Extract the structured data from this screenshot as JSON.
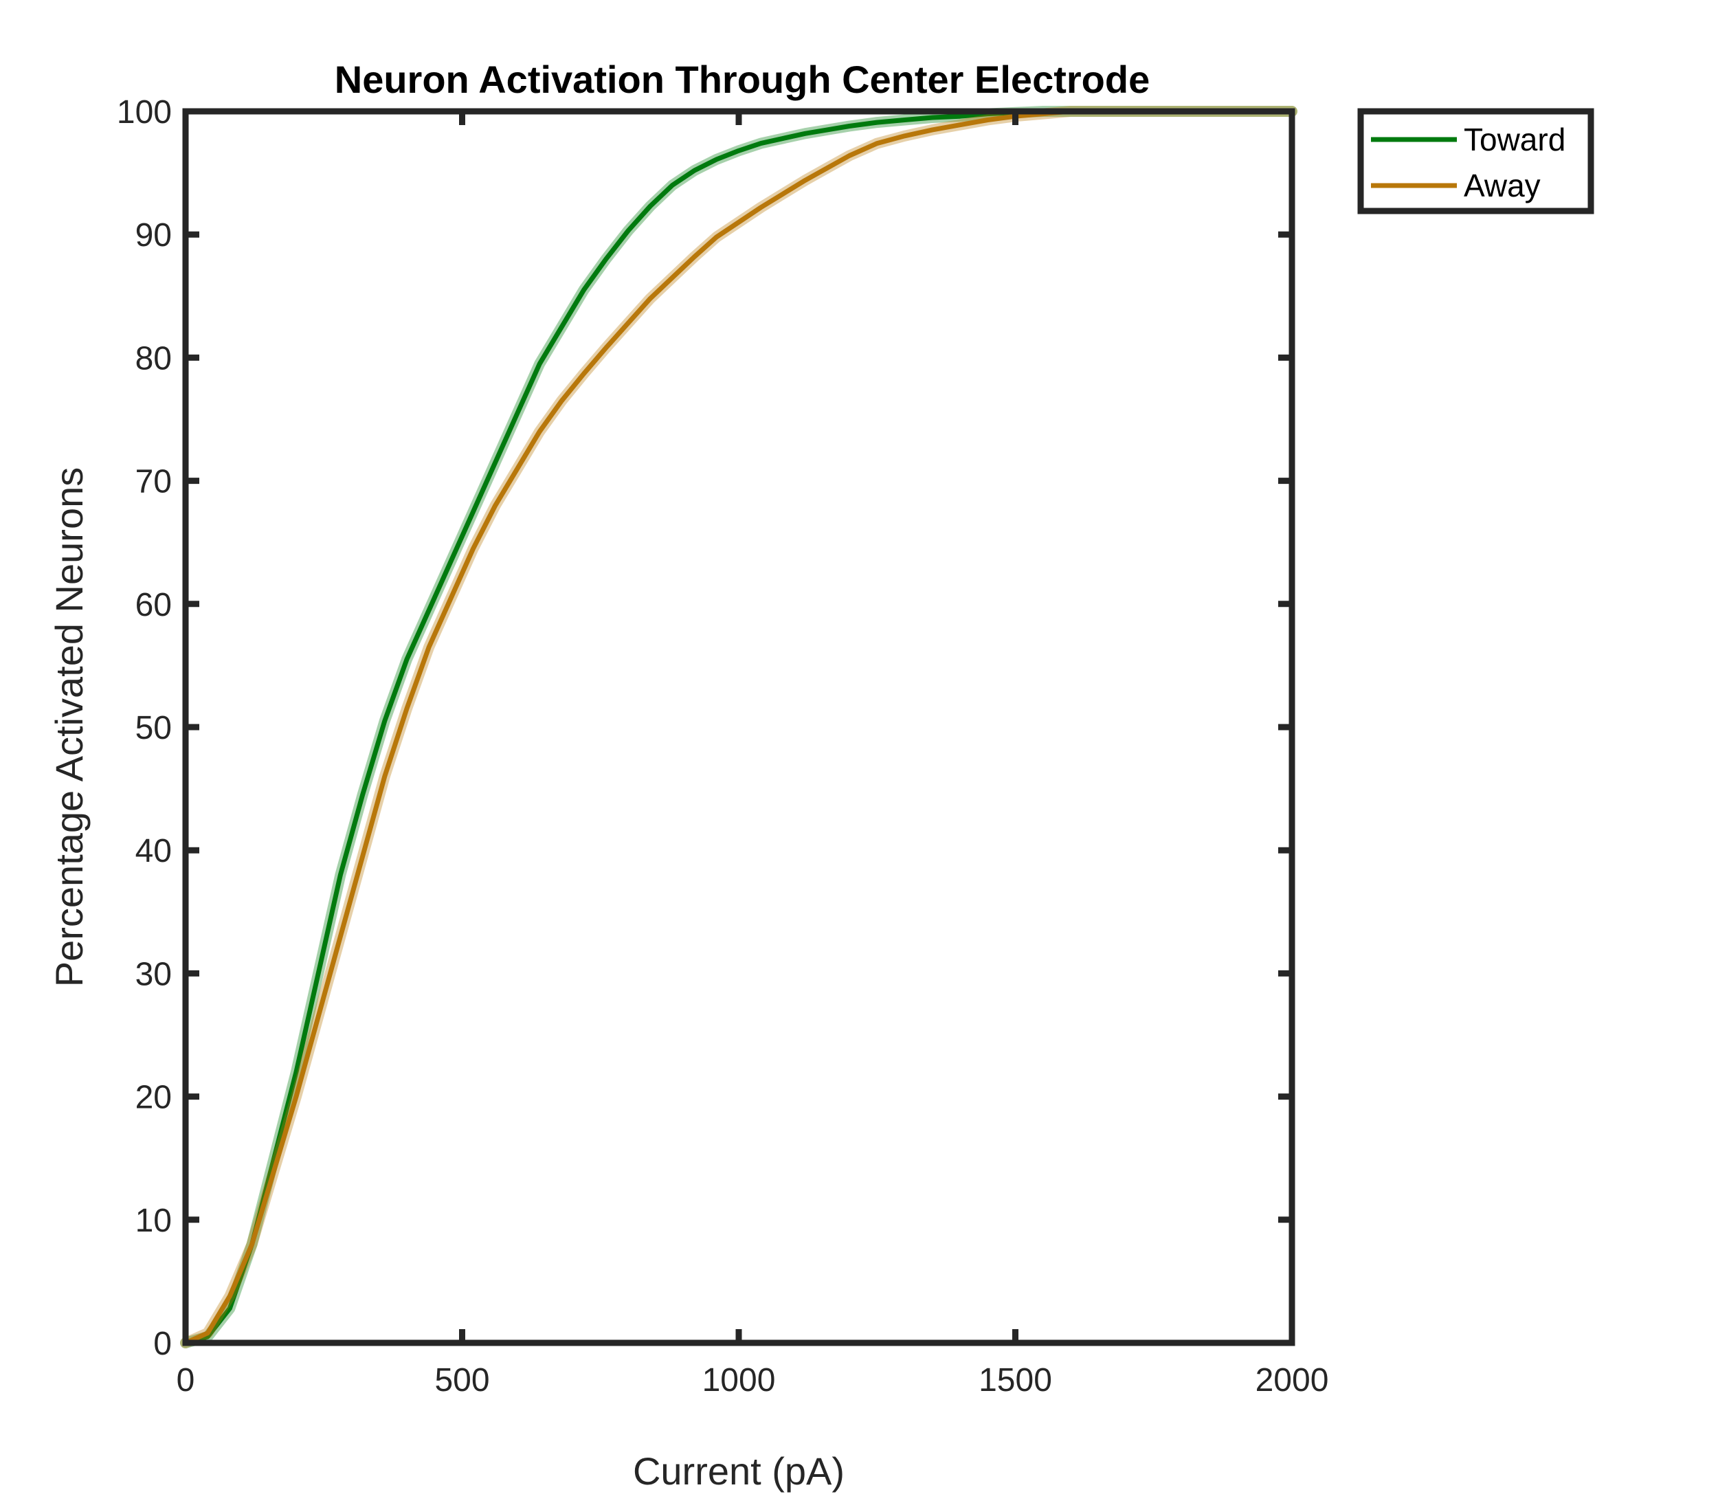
{
  "chart_data": {
    "type": "line",
    "title": "Neuron Activation Through Center Electrode",
    "xlabel": "Current (pA)",
    "ylabel": "Percentage Activated Neurons",
    "xlim": [
      0,
      2000
    ],
    "ylim": [
      0,
      100
    ],
    "xticks": [
      "0",
      "500",
      "1000",
      "1500",
      "2000"
    ],
    "yticks": [
      "0",
      "10",
      "20",
      "30",
      "40",
      "50",
      "60",
      "70",
      "80",
      "90",
      "100"
    ],
    "grid": false,
    "legend_position": "outside-top-right",
    "series": [
      {
        "name": "Toward",
        "color": "#007A0E",
        "x": [
          0,
          40,
          80,
          120,
          160,
          200,
          240,
          280,
          320,
          360,
          400,
          440,
          480,
          520,
          560,
          600,
          640,
          680,
          720,
          760,
          800,
          840,
          880,
          920,
          960,
          1000,
          1040,
          1080,
          1120,
          1160,
          1200,
          1250,
          1300,
          1350,
          1400,
          1450,
          1500,
          1550,
          1600,
          1700,
          1800,
          1900,
          2000
        ],
        "y": [
          0,
          0.5,
          2.8,
          8,
          15,
          22,
          30,
          38,
          44.5,
          50.5,
          55.5,
          59.5,
          63.5,
          67.5,
          71.5,
          75.5,
          79.5,
          82.5,
          85.5,
          88,
          90.3,
          92.3,
          94,
          95.2,
          96.1,
          96.8,
          97.4,
          97.8,
          98.2,
          98.5,
          98.8,
          99.1,
          99.3,
          99.5,
          99.6,
          99.8,
          99.9,
          100,
          100,
          100,
          100,
          100,
          100
        ]
      },
      {
        "name": "Away",
        "color": "#B8770A",
        "x": [
          0,
          40,
          80,
          120,
          160,
          200,
          240,
          280,
          320,
          360,
          400,
          440,
          480,
          520,
          560,
          600,
          640,
          680,
          720,
          760,
          800,
          840,
          880,
          920,
          960,
          1000,
          1040,
          1080,
          1120,
          1160,
          1200,
          1250,
          1300,
          1350,
          1400,
          1450,
          1500,
          1550,
          1600,
          1700,
          1800,
          1900,
          2000
        ],
        "y": [
          0,
          0.8,
          3.8,
          8,
          14,
          20,
          26.5,
          33,
          39.5,
          46,
          51.5,
          56.5,
          60.5,
          64.5,
          68,
          71,
          74,
          76.5,
          78.7,
          80.8,
          82.8,
          84.8,
          86.5,
          88.2,
          89.8,
          91,
          92.2,
          93.3,
          94.4,
          95.4,
          96.4,
          97.4,
          98,
          98.5,
          98.9,
          99.3,
          99.6,
          99.8,
          100,
          100,
          100,
          100,
          100
        ]
      }
    ]
  }
}
